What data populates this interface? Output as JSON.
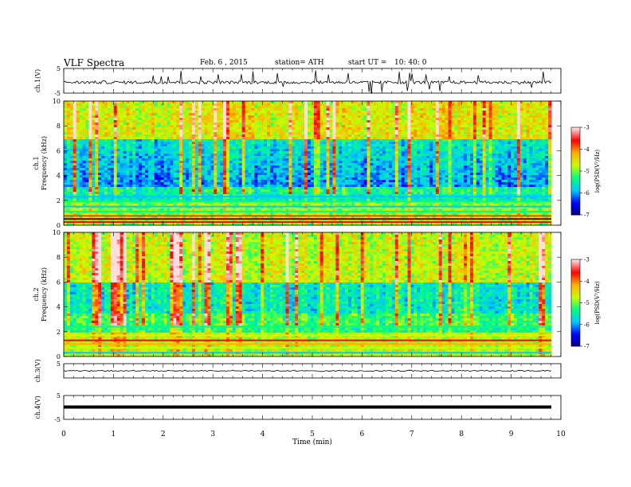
{
  "header": {
    "title": "VLF  Spectra",
    "date": "Feb. 6  , 2015",
    "station": "station= ATH",
    "start_label": "start  UT  =",
    "start_time": "10: 40: 0"
  },
  "chart_data": [
    {
      "type": "line",
      "name": "ch1-waveform",
      "ylabel": "ch.1(V)",
      "ylim": [
        -5,
        5
      ],
      "yticks": [
        "5",
        "-5"
      ],
      "xlim": [
        0,
        10
      ],
      "description_level": 0
    },
    {
      "type": "heatmap",
      "name": "ch1-spectrogram",
      "ylabel": "ch.1\nFrequency  (kHz)",
      "ylabel_line1": "ch.1",
      "ylabel_line2": "Frequency  (kHz)",
      "ylim": [
        0,
        10
      ],
      "yticks": [
        "0",
        "2",
        "4",
        "6",
        "8",
        "10"
      ],
      "xlim": [
        0,
        10
      ],
      "data_end_min": 9.83,
      "colorbar": {
        "label": "log(PSD(V²/Hz)",
        "range": [
          -7,
          -3
        ],
        "ticks": [
          "-3",
          "-4",
          "-5",
          "-6",
          "-7"
        ]
      }
    },
    {
      "type": "heatmap",
      "name": "ch2-spectrogram",
      "ylabel_line1": "ch.2",
      "ylabel_line2": "Frequency  (kHz)",
      "ylim": [
        0,
        10
      ],
      "yticks": [
        "0",
        "2",
        "4",
        "6",
        "8",
        "10"
      ],
      "xlim": [
        0,
        10
      ],
      "data_end_min": 9.83,
      "colorbar": {
        "label": "log(PSD(V²/Hz)",
        "range": [
          -7,
          -3
        ],
        "ticks": [
          "-3",
          "-4",
          "-5",
          "-6",
          "-7"
        ]
      }
    },
    {
      "type": "line",
      "name": "ch3-waveform",
      "ylabel": "ch.3(V)",
      "ylim": [
        -5,
        5
      ],
      "yticks": [
        "5"
      ],
      "xlim": [
        0,
        10
      ]
    },
    {
      "type": "line",
      "name": "ch4-waveform",
      "ylabel": "ch.4(V)",
      "ylim": [
        -5,
        5
      ],
      "yticks": [
        "5",
        "-5"
      ],
      "xlim": [
        0,
        10
      ]
    }
  ],
  "xaxis": {
    "label": "Time  (min)",
    "ticks": [
      "0",
      "1",
      "2",
      "3",
      "4",
      "5",
      "6",
      "7",
      "8",
      "9",
      "10"
    ],
    "range": [
      0,
      10
    ]
  },
  "colors": {
    "background": "#ffffff",
    "trace": "#000000",
    "colormap": [
      "#000080",
      "#0000ff",
      "#00c8ff",
      "#00ff80",
      "#c8ff00",
      "#ffb000",
      "#ff0000",
      "#ffe0e0"
    ]
  }
}
